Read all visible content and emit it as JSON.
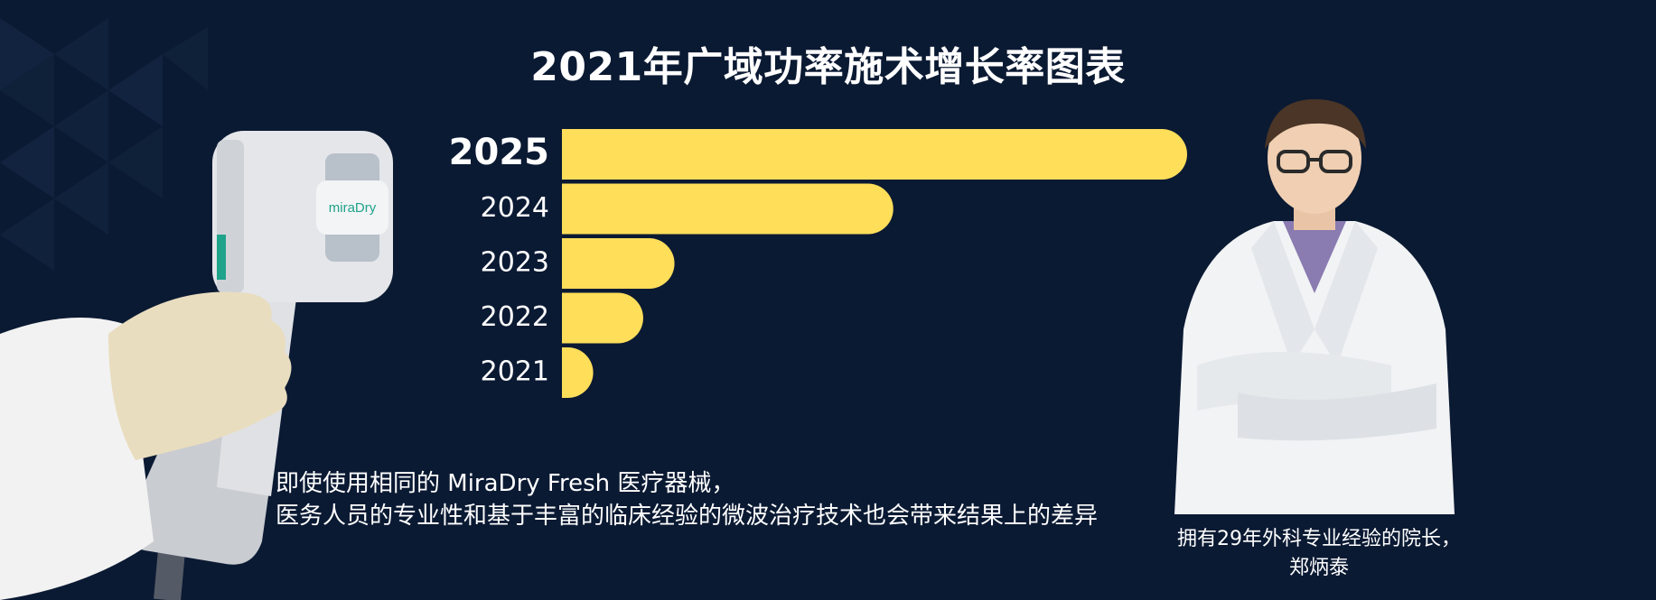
{
  "title": "2021年广域功率施术增长率图表",
  "chart_data": {
    "type": "bar",
    "orientation": "horizontal",
    "categories": [
      "2025",
      "2024",
      "2023",
      "2022",
      "2021"
    ],
    "values": [
      100,
      53,
      18,
      13,
      5
    ],
    "highlight_category": "2025",
    "bar_color": "#ffde5a",
    "xlim": [
      0,
      100
    ]
  },
  "caption": {
    "line1": "即使使用相同的 MiraDry Fresh 医疗器械，",
    "line2": "医务人员的专业性和基于丰富的临床经验的微波治疗技术也会带来结果上的差异"
  },
  "doctor": {
    "line1": "拥有29年外科专业经验的院长，",
    "line2": "郑炳泰"
  },
  "device_logo": "miraDry",
  "colors": {
    "background": "#0b1a33",
    "bar": "#ffde5a",
    "text": "#ffffff"
  }
}
